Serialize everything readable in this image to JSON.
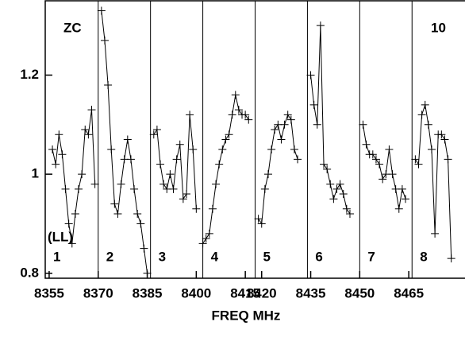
{
  "chart_data": {
    "type": "line",
    "xlabel": "FREQ MHz",
    "xlim": [
      8353.8,
      8482.2
    ],
    "ylim": [
      0.79,
      1.35
    ],
    "xticks": [
      8355,
      8370,
      8385,
      8400,
      8415,
      8420,
      8435,
      8450,
      8465
    ],
    "yticks": [
      0.8,
      1.0,
      1.2
    ],
    "dividers": [
      8370,
      8386,
      8402,
      8418,
      8434,
      8450,
      8466
    ],
    "color": "#000000",
    "annotations": [
      "ZC",
      "10",
      "(LL)"
    ],
    "panel_labels": [
      "1",
      "2",
      "3",
      "4",
      "5",
      "6",
      "7",
      "8"
    ],
    "series": [
      {
        "x": [
          8356,
          8357,
          8358,
          8359,
          8360,
          8361,
          8362,
          8363,
          8364,
          8365,
          8366,
          8367,
          8368,
          8369
        ],
        "values": [
          1.05,
          1.02,
          1.08,
          1.04,
          0.97,
          0.9,
          0.86,
          0.92,
          0.97,
          1.0,
          1.09,
          1.08,
          1.13,
          0.98
        ]
      },
      {
        "x": [
          8371,
          8372,
          8373,
          8374,
          8375,
          8376,
          8377,
          8378,
          8379,
          8380,
          8381,
          8382,
          8383,
          8384,
          8385
        ],
        "values": [
          1.33,
          1.27,
          1.18,
          1.05,
          0.94,
          0.92,
          0.98,
          1.03,
          1.07,
          1.03,
          0.97,
          0.92,
          0.9,
          0.85,
          0.8
        ]
      },
      {
        "x": [
          8387,
          8388,
          8389,
          8390,
          8391,
          8392,
          8393,
          8394,
          8395,
          8396,
          8397,
          8398,
          8399,
          8400
        ],
        "values": [
          1.08,
          1.09,
          1.02,
          0.98,
          0.97,
          1.0,
          0.97,
          1.03,
          1.06,
          0.95,
          0.96,
          1.12,
          1.05,
          0.93
        ]
      },
      {
        "x": [
          8402,
          8403,
          8404,
          8405,
          8406,
          8407,
          8408,
          8409,
          8410,
          8411,
          8412,
          8413,
          8414,
          8415,
          8416
        ],
        "values": [
          0.86,
          0.87,
          0.88,
          0.93,
          0.98,
          1.02,
          1.05,
          1.07,
          1.08,
          1.12,
          1.16,
          1.13,
          1.12,
          1.12,
          1.11
        ]
      },
      {
        "x": [
          8419,
          8420,
          8421,
          8422,
          8423,
          8424,
          8425,
          8426,
          8427,
          8428,
          8429,
          8430,
          8431
        ],
        "values": [
          0.91,
          0.9,
          0.97,
          1.0,
          1.05,
          1.09,
          1.1,
          1.07,
          1.1,
          1.12,
          1.11,
          1.05,
          1.03
        ]
      },
      {
        "x": [
          8435,
          8436,
          8437,
          8438,
          8439,
          8440,
          8441,
          8442,
          8443,
          8444,
          8445,
          8446,
          8447
        ],
        "values": [
          1.2,
          1.14,
          1.1,
          1.3,
          1.02,
          1.01,
          0.98,
          0.95,
          0.97,
          0.98,
          0.96,
          0.93,
          0.92
        ]
      },
      {
        "x": [
          8451,
          8452,
          8453,
          8454,
          8455,
          8456,
          8457,
          8458,
          8459,
          8460,
          8461,
          8462,
          8463,
          8464
        ],
        "values": [
          1.1,
          1.06,
          1.04,
          1.04,
          1.03,
          1.02,
          0.99,
          1.0,
          1.05,
          1.0,
          0.97,
          0.93,
          0.97,
          0.95
        ]
      },
      {
        "x": [
          8467,
          8468,
          8469,
          8470,
          8471,
          8472,
          8473,
          8474,
          8475,
          8476,
          8477,
          8478
        ],
        "values": [
          1.03,
          1.02,
          1.12,
          1.14,
          1.1,
          1.05,
          0.88,
          1.08,
          1.08,
          1.07,
          1.03,
          0.83
        ]
      }
    ]
  }
}
